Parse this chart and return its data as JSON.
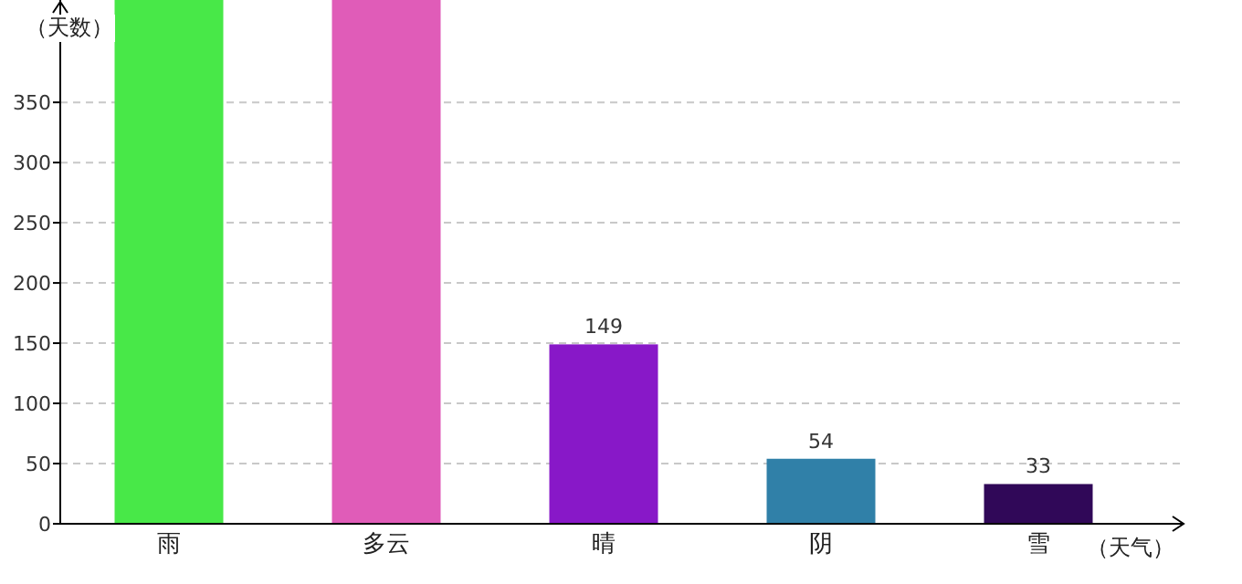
{
  "chart_data": {
    "type": "bar",
    "xlabel": "（天气）",
    "ylabel": "（天数）",
    "categories": [
      "雨",
      "多云",
      "晴",
      "阴",
      "雪"
    ],
    "values": [
      435,
      435,
      149,
      54,
      33
    ],
    "colors": [
      "#48e848",
      "#e05cb8",
      "#8818c8",
      "#3080a8",
      "#300858"
    ],
    "value_labels": [
      null,
      null,
      "149",
      "54",
      "33"
    ],
    "ylim": [
      0,
      435
    ],
    "yticks": [
      0,
      50,
      100,
      150,
      200,
      250,
      300,
      350
    ],
    "grid": "y"
  }
}
